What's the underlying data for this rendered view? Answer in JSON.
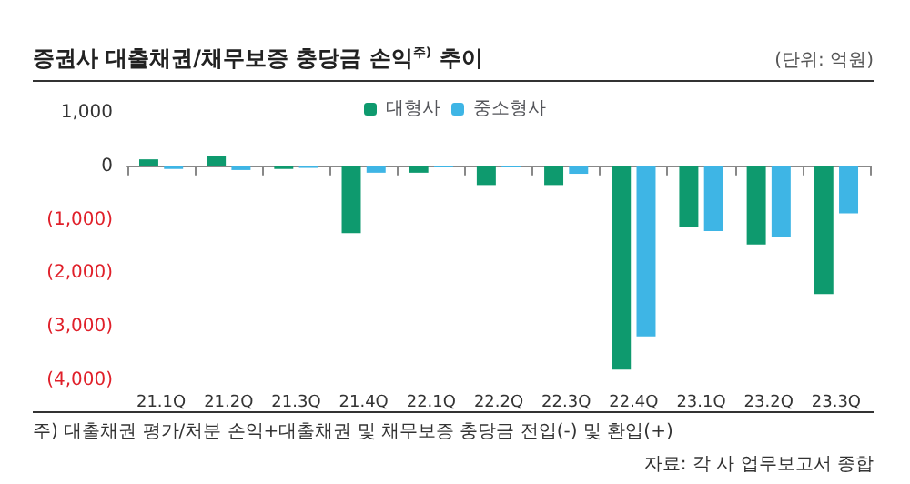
{
  "chart_data": {
    "type": "bar",
    "title": "증권사 대출채권/채무보증 충당금 손익$^{주)}$ 추이",
    "subtitle": "(단위: 억원)",
    "categories": [
      "21.1Q",
      "21.2Q",
      "21.3Q",
      "21.4Q",
      "22.1Q",
      "22.2Q",
      "22.3Q",
      "22.4Q",
      "23.1Q",
      "23.2Q",
      "23.3Q"
    ],
    "series": [
      {
        "name": "대형사",
        "color": "#0e9a6e",
        "values": [
          130,
          200,
          -50,
          -1250,
          -120,
          -350,
          -350,
          -3800,
          -1140,
          -1460,
          -2390
        ]
      },
      {
        "name": "중소형사",
        "color": "#3eb5e5",
        "values": [
          -50,
          -70,
          -30,
          -120,
          -20,
          -20,
          -140,
          -3180,
          -1210,
          -1320,
          -880
        ]
      }
    ],
    "ylim": [
      -4000,
      1000
    ],
    "yticks": [
      {
        "value": -4000,
        "label": "(4,000)"
      },
      {
        "value": -3000,
        "label": "(3,000)"
      },
      {
        "value": -2000,
        "label": "(2,000)"
      },
      {
        "value": -1000,
        "label": "(1,000)"
      },
      0,
      {
        "value": 1000,
        "label": "1,000"
      }
    ],
    "legend": "top",
    "annotations": [
      "주) 대출채권 평가/처분 손익+대출채권 및 채무보증 충당금 전입(-) 및 환입(+)",
      "자료: 각 사 업무보고서 종합"
    ]
  }
}
